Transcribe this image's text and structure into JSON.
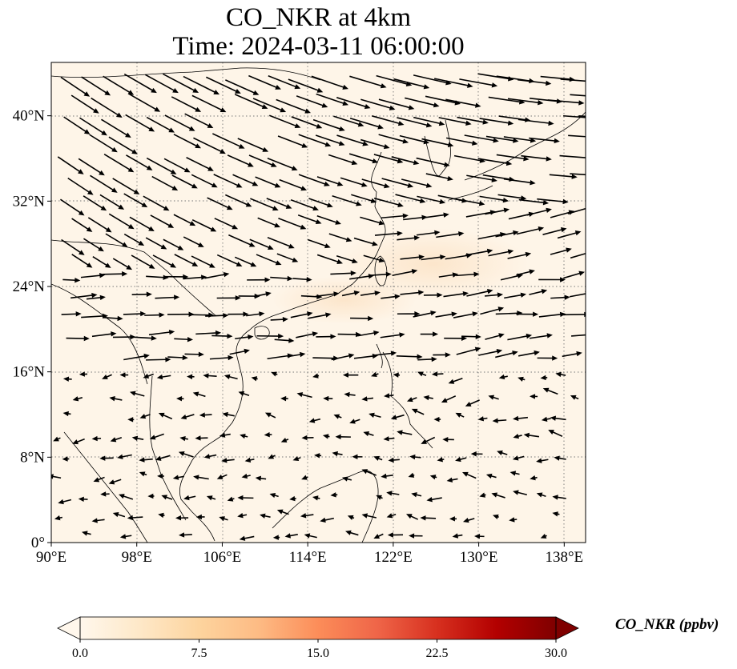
{
  "title": {
    "line1": "CO_NKR at 4km",
    "line2": "Time: 2024-03-11 06:00:00"
  },
  "map": {
    "extent": {
      "lon_min": 90,
      "lon_max": 140,
      "lat_min": 0,
      "lat_max": 45
    },
    "projection": "PlateCarree",
    "gridlines": "dotted",
    "x_ticks": [
      {
        "lon": 90,
        "label": "90°E"
      },
      {
        "lon": 98,
        "label": "98°E"
      },
      {
        "lon": 106,
        "label": "106°E"
      },
      {
        "lon": 114,
        "label": "114°E"
      },
      {
        "lon": 122,
        "label": "122°E"
      },
      {
        "lon": 130,
        "label": "130°E"
      },
      {
        "lon": 138,
        "label": "138°E"
      }
    ],
    "y_ticks": [
      {
        "lat": 0,
        "label": "0°"
      },
      {
        "lat": 8,
        "label": "8°N"
      },
      {
        "lat": 16,
        "label": "16°N"
      },
      {
        "lat": 24,
        "label": "24°N"
      },
      {
        "lat": 32,
        "label": "32°N"
      },
      {
        "lat": 40,
        "label": "40°N"
      }
    ],
    "field_background": "#fef5e8",
    "plume_color": "#fce4c8",
    "land_outline_color": "#000000",
    "vector_color": "#000000"
  },
  "colorbar": {
    "label": "CO_NKR (ppbv)",
    "min": 0.0,
    "max": 30.0,
    "extend": "both",
    "colormap": "OrRd",
    "stops": [
      "#fff7ec",
      "#fee8c8",
      "#fdd49e",
      "#fdbb84",
      "#fc8d59",
      "#ef6548",
      "#d7301f",
      "#b30000",
      "#7f0000"
    ],
    "ticks": [
      "0.0",
      "7.5",
      "15.0",
      "22.5",
      "30.0"
    ]
  }
}
